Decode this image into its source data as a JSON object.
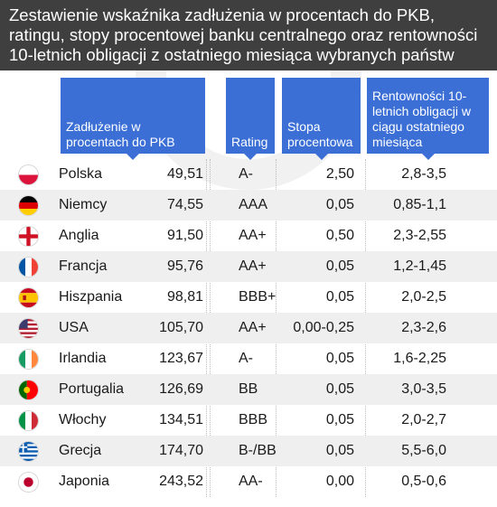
{
  "title": "Zestawienie wskaźnika zadłużenia w procentach do PKB, ratingu, stopy procentowej banku centralnego oraz rentowności 10-letnich obligacji z ostatniego miesiąca wybranych państw",
  "headers": {
    "debt": "Zadłużenie w procentach do PKB",
    "rating": "Rating",
    "rate": "Stopa procentowa",
    "yield": "Rentowności 10-letnich obligacji w ciągu ostatniego miesiąca"
  },
  "colors": {
    "title_bg": "#3f3f3f",
    "header_bg": "#3b6fd6",
    "row_alt": "#efefef"
  },
  "rows": [
    {
      "country": "Polska",
      "flag": "poland-flag-icon",
      "debt": "49,51",
      "rating": "A-",
      "rate": "2,50",
      "yield": "2,8-3,5"
    },
    {
      "country": "Niemcy",
      "flag": "germany-flag-icon",
      "debt": "74,55",
      "rating": "AAA",
      "rate": "0,05",
      "yield": "0,85-1,1"
    },
    {
      "country": "Anglia",
      "flag": "england-flag-icon",
      "debt": "91,50",
      "rating": "AA+",
      "rate": "0,50",
      "yield": "2,3-2,55"
    },
    {
      "country": "Francja",
      "flag": "france-flag-icon",
      "debt": "95,76",
      "rating": "AA+",
      "rate": "0,05",
      "yield": "1,2-1,45"
    },
    {
      "country": "Hiszpania",
      "flag": "spain-flag-icon",
      "debt": "98,81",
      "rating": "BBB+",
      "rate": "0,05",
      "yield": "2,0-2,5"
    },
    {
      "country": "USA",
      "flag": "usa-flag-icon",
      "debt": "105,70",
      "rating": "AA+",
      "rate": "0,00-0,25",
      "yield": "2,3-2,6"
    },
    {
      "country": "Irlandia",
      "flag": "ireland-flag-icon",
      "debt": "123,67",
      "rating": "A-",
      "rate": "0,05",
      "yield": "1,6-2,25"
    },
    {
      "country": "Portugalia",
      "flag": "portugal-flag-icon",
      "debt": "126,69",
      "rating": "BB",
      "rate": "0,05",
      "yield": "3,0-3,5"
    },
    {
      "country": "Włochy",
      "flag": "italy-flag-icon",
      "debt": "134,51",
      "rating": "BBB",
      "rate": "0,05",
      "yield": "2,0-2,7"
    },
    {
      "country": "Grecja",
      "flag": "greece-flag-icon",
      "debt": "174,70",
      "rating": "B-/BB",
      "rate": "0,05",
      "yield": "5,5-6,0"
    },
    {
      "country": "Japonia",
      "flag": "japan-flag-icon",
      "debt": "243,52",
      "rating": "AA-",
      "rate": "0,00",
      "yield": "0,5-0,6"
    }
  ]
}
